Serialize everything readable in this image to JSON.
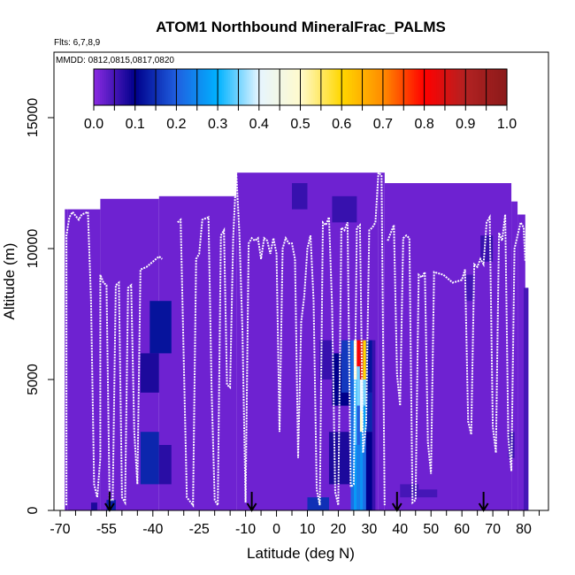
{
  "chart_data": {
    "type": "heatmap",
    "title": "ATOM1 Northbound MineralFrac_PALMS",
    "subtitle_flights": "Flts: 6,7,8,9",
    "subtitle_dates": "MMDD: 0812,0815,0817,0820",
    "xlabel": "Latitude (deg N)",
    "ylabel": "Altitude (m)",
    "xlim": [
      -72,
      88
    ],
    "ylim": [
      0,
      17500
    ],
    "x_ticks": [
      -70,
      -55,
      -40,
      -25,
      -10,
      0,
      10,
      20,
      30,
      40,
      50,
      60,
      70,
      80
    ],
    "x_tick_labels": [
      "-70",
      "-55",
      "-40",
      "-25",
      "-10",
      "0",
      "10",
      "20",
      "30",
      "40",
      "50",
      "60",
      "70",
      "80"
    ],
    "x_minor_ticks": [
      -65,
      -60,
      -50,
      -45,
      -35,
      -30,
      -20,
      -15,
      -5,
      5,
      15,
      25,
      35,
      45,
      55,
      65,
      75,
      85
    ],
    "y_ticks": [
      0,
      5000,
      10000,
      15000
    ],
    "y_tick_labels": [
      "0",
      "5000",
      "10000",
      "15000"
    ],
    "colorbar": {
      "range": [
        0,
        1
      ],
      "tick_labels": [
        "0.0",
        "0.1",
        "0.2",
        "0.3",
        "0.4",
        "0.5",
        "0.6",
        "0.7",
        "0.8",
        "0.9",
        "1.0"
      ],
      "colors": [
        "#8a2be2",
        "#00008b",
        "#1f5fe0",
        "#00b2ff",
        "#e6f5ff",
        "#fffacd",
        "#ffd700",
        "#ff8c00",
        "#ff0000",
        "#b22222",
        "#8b1a1a"
      ]
    },
    "background_value": 0.02,
    "coverage_columns": [
      {
        "x0": -68.5,
        "x1": -67.5,
        "top": 11500
      },
      {
        "x0": -67.5,
        "x1": -57,
        "top": 11500
      },
      {
        "x0": -57,
        "x1": -38,
        "top": 11900
      },
      {
        "x0": -38,
        "x1": -13,
        "top": 12000
      },
      {
        "x0": -13,
        "x1": 33,
        "top": 12900
      },
      {
        "x0": 33,
        "x1": 35,
        "top": 12900
      },
      {
        "x0": 35,
        "x1": 76,
        "top": 12500
      },
      {
        "x0": 76,
        "x1": 78,
        "top": 11800
      },
      {
        "x0": 78,
        "x1": 80.5,
        "top": 11300
      },
      {
        "x0": 80.5,
        "x1": 81.5,
        "top": 8500
      }
    ],
    "cells": [
      {
        "x0": -41,
        "x1": -34,
        "y0": 6000,
        "y1": 8000,
        "v": 0.12
      },
      {
        "x0": -44,
        "x1": -38,
        "y0": 4500,
        "y1": 6000,
        "v": 0.08
      },
      {
        "x0": -44,
        "x1": -38,
        "y0": 1000,
        "y1": 3000,
        "v": 0.14
      },
      {
        "x0": -38,
        "x1": -34,
        "y0": 1000,
        "y1": 2500,
        "v": 0.07
      },
      {
        "x0": -55,
        "x1": -52,
        "y0": 0,
        "y1": 400,
        "v": 0.13
      },
      {
        "x0": -60,
        "x1": -58,
        "y0": 0,
        "y1": 300,
        "v": 0.08
      },
      {
        "x0": 10,
        "x1": 17,
        "y0": 0,
        "y1": 500,
        "v": 0.15
      },
      {
        "x0": 17,
        "x1": 24,
        "y0": 1000,
        "y1": 3000,
        "v": 0.08
      },
      {
        "x0": 18,
        "x1": 24,
        "y0": 4000,
        "y1": 6000,
        "v": 0.1
      },
      {
        "x0": 14,
        "x1": 18,
        "y0": 5000,
        "y1": 6500,
        "v": 0.06
      },
      {
        "x0": 24,
        "x1": 25,
        "y0": 0,
        "y1": 6500,
        "v": 0.22
      },
      {
        "x0": 25,
        "x1": 26,
        "y0": 5000,
        "y1": 6500,
        "v": 0.5
      },
      {
        "x0": 25,
        "x1": 26,
        "y0": 2500,
        "y1": 5000,
        "v": 0.33
      },
      {
        "x0": 25,
        "x1": 26,
        "y0": 0,
        "y1": 2500,
        "v": 0.27
      },
      {
        "x0": 26,
        "x1": 27,
        "y0": 5500,
        "y1": 6500,
        "v": 0.8
      },
      {
        "x0": 26,
        "x1": 27,
        "y0": 4000,
        "y1": 5500,
        "v": 0.35
      },
      {
        "x0": 26,
        "x1": 27,
        "y0": 2500,
        "y1": 4000,
        "v": 0.2
      },
      {
        "x0": 26,
        "x1": 27,
        "y0": 0,
        "y1": 2500,
        "v": 0.24
      },
      {
        "x0": 27,
        "x1": 28,
        "y0": 5000,
        "y1": 6500,
        "v": 0.85
      },
      {
        "x0": 27,
        "x1": 28,
        "y0": 3800,
        "y1": 5000,
        "v": 0.4
      },
      {
        "x0": 27,
        "x1": 28,
        "y0": 3000,
        "y1": 3800,
        "v": 0.5
      },
      {
        "x0": 27,
        "x1": 28,
        "y0": 0,
        "y1": 3000,
        "v": 0.26
      },
      {
        "x0": 28,
        "x1": 29,
        "y0": 5000,
        "y1": 6500,
        "v": 0.6
      },
      {
        "x0": 28,
        "x1": 29,
        "y0": 4000,
        "y1": 5000,
        "v": 0.35
      },
      {
        "x0": 28,
        "x1": 29,
        "y0": 3000,
        "y1": 4000,
        "v": 0.28
      },
      {
        "x0": 28,
        "x1": 29,
        "y0": 0,
        "y1": 3000,
        "v": 0.22
      },
      {
        "x0": 29,
        "x1": 31,
        "y0": 3000,
        "y1": 4500,
        "v": 0.14
      },
      {
        "x0": 29,
        "x1": 31,
        "y0": 4500,
        "y1": 6500,
        "v": 0.12
      },
      {
        "x0": 29,
        "x1": 31,
        "y0": 0,
        "y1": 3000,
        "v": 0.1
      },
      {
        "x0": 31,
        "x1": 32,
        "y0": 0,
        "y1": 6500,
        "v": 0.06
      },
      {
        "x0": 21,
        "x1": 24,
        "y0": 4500,
        "y1": 6500,
        "v": 0.16
      },
      {
        "x0": 5,
        "x1": 10,
        "y0": 11500,
        "y1": 12500,
        "v": 0.06
      },
      {
        "x0": 18,
        "x1": 26,
        "y0": 11000,
        "y1": 12000,
        "v": 0.06
      },
      {
        "x0": 66,
        "x1": 70,
        "y0": 9500,
        "y1": 10500,
        "v": 0.06
      },
      {
        "x0": 61,
        "x1": 64,
        "y0": 8000,
        "y1": 9000,
        "v": 0.05
      },
      {
        "x0": 40,
        "x1": 46,
        "y0": 500,
        "y1": 1000,
        "v": 0.05
      },
      {
        "x0": 46,
        "x1": 52,
        "y0": 500,
        "y1": 800,
        "v": 0.05
      },
      {
        "x0": 75,
        "x1": 77,
        "y0": 2000,
        "y1": 3000,
        "v": 0.06
      },
      {
        "x0": 80,
        "x1": 81.5,
        "y0": 0,
        "y1": 8500,
        "v": 0.05
      }
    ],
    "flight_tracks": [
      [
        [
          -68,
          200
        ],
        [
          -68,
          10500
        ],
        [
          -67,
          11200
        ],
        [
          -66,
          11400
        ],
        [
          -64,
          11100
        ],
        [
          -63,
          11300
        ],
        [
          -61,
          11400
        ],
        [
          -60,
          8000
        ],
        [
          -59,
          1000
        ],
        [
          -58,
          500
        ],
        [
          -57,
          2000
        ],
        [
          -57,
          9000
        ],
        [
          -56,
          8700
        ],
        [
          -55,
          8600
        ],
        [
          -54,
          400
        ],
        [
          -53,
          400
        ],
        [
          -52,
          8600
        ],
        [
          -51,
          8700
        ],
        [
          -50,
          500
        ],
        [
          -49,
          300
        ],
        [
          -48,
          8500
        ],
        [
          -47,
          8600
        ],
        [
          -46,
          3000
        ],
        [
          -45,
          1000
        ],
        [
          -44,
          9200
        ],
        [
          -42,
          9300
        ],
        [
          -40,
          9500
        ],
        [
          -38,
          9700
        ],
        [
          -37,
          9600
        ]
      ],
      [
        [
          -32,
          11000
        ],
        [
          -31,
          11100
        ],
        [
          -29,
          500
        ],
        [
          -27,
          200
        ],
        [
          -26,
          9600
        ],
        [
          -25,
          9800
        ],
        [
          -24,
          11100
        ],
        [
          -22,
          11200
        ],
        [
          -21,
          4600
        ],
        [
          -20,
          400
        ],
        [
          -19,
          200
        ],
        [
          -18,
          10500
        ],
        [
          -17,
          10700
        ],
        [
          -16,
          4800
        ],
        [
          -15,
          4700
        ],
        [
          -14,
          10400
        ],
        [
          -13,
          12900
        ],
        [
          -12,
          10600
        ],
        [
          -11,
          6800
        ],
        [
          -10,
          300
        ],
        [
          -9,
          10200
        ],
        [
          -8,
          10400
        ],
        [
          -7,
          10300
        ],
        [
          -6,
          10400
        ],
        [
          -5,
          9600
        ],
        [
          -4,
          10400
        ],
        [
          -3,
          10300
        ],
        [
          -2,
          9800
        ],
        [
          -1,
          10400
        ],
        [
          0,
          9800
        ],
        [
          1,
          3000
        ],
        [
          2,
          10000
        ],
        [
          3,
          10400
        ],
        [
          4,
          10200
        ],
        [
          5,
          10200
        ],
        [
          6,
          9600
        ],
        [
          7,
          2000
        ],
        [
          8,
          7200
        ],
        [
          9,
          8200
        ],
        [
          10,
          10000
        ],
        [
          11,
          10500
        ],
        [
          12,
          8000
        ],
        [
          13,
          800
        ],
        [
          14,
          200
        ],
        [
          15,
          11000
        ],
        [
          16,
          10900
        ],
        [
          17,
          11200
        ],
        [
          18,
          7800
        ],
        [
          19,
          700
        ],
        [
          20,
          200
        ],
        [
          21,
          10800
        ],
        [
          22,
          10700
        ],
        [
          23,
          11000
        ],
        [
          24,
          900
        ],
        [
          25,
          1000
        ],
        [
          26,
          10800
        ],
        [
          27,
          10900
        ],
        [
          28,
          2200
        ],
        [
          29,
          3300
        ],
        [
          30,
          10700
        ],
        [
          31,
          10800
        ],
        [
          32,
          11000
        ],
        [
          33,
          12900
        ],
        [
          34,
          12800
        ],
        [
          35,
          200
        ]
      ],
      [
        [
          36,
          10300
        ],
        [
          37,
          10600
        ],
        [
          38,
          10900
        ],
        [
          39,
          5200
        ],
        [
          40,
          4000
        ],
        [
          41,
          10400
        ],
        [
          42,
          10500
        ],
        [
          43,
          10400
        ],
        [
          44,
          300
        ],
        [
          45,
          400
        ],
        [
          46,
          9000
        ],
        [
          47,
          8900
        ],
        [
          48,
          9100
        ],
        [
          49,
          2600
        ],
        [
          50,
          1400
        ],
        [
          51,
          9100
        ],
        [
          54,
          9000
        ],
        [
          57,
          8700
        ],
        [
          60,
          8800
        ],
        [
          61,
          9200
        ],
        [
          62,
          3400
        ],
        [
          63,
          2900
        ],
        [
          64,
          9400
        ],
        [
          65,
          9300
        ],
        [
          66,
          9600
        ],
        [
          67,
          9400
        ],
        [
          68,
          11000
        ],
        [
          69,
          11200
        ],
        [
          70,
          3200
        ],
        [
          71,
          2200
        ],
        [
          72,
          10600
        ],
        [
          73,
          10300
        ],
        [
          74,
          11300
        ],
        [
          75,
          2800
        ],
        [
          76,
          1500
        ],
        [
          77,
          10000
        ],
        [
          78,
          10500
        ],
        [
          79,
          11000
        ],
        [
          80,
          10800
        ],
        [
          80.5,
          9500
        ]
      ]
    ],
    "arrows_x": [
      -54,
      -8,
      39,
      67
    ]
  }
}
